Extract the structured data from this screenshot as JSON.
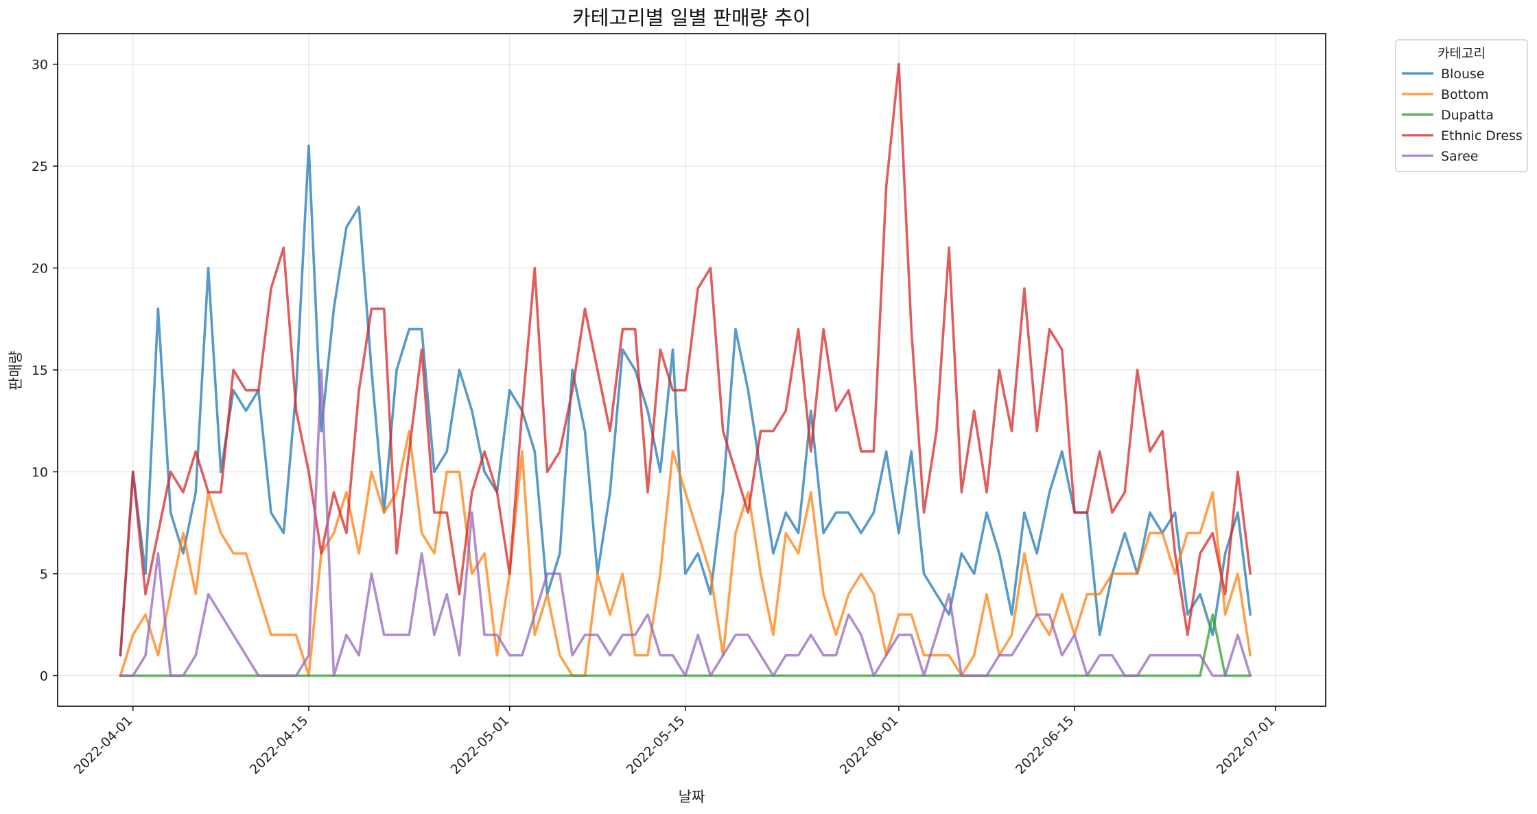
{
  "chart_data": {
    "type": "line",
    "title": "카테고리별 일별 판매량 추이",
    "xlabel": "날짜",
    "ylabel": "판매량",
    "ylim": [
      -1.5,
      31.5
    ],
    "xlim": [
      "2022-03-26",
      "2022-07-05"
    ],
    "grid": true,
    "legend": {
      "title": "카테고리",
      "placement": "outside top-right"
    },
    "x_ticks": [
      "2022-04-01",
      "2022-04-15",
      "2022-05-01",
      "2022-05-15",
      "2022-06-01",
      "2022-06-15",
      "2022-07-01"
    ],
    "y_ticks": [
      0,
      5,
      10,
      15,
      20,
      25,
      30
    ],
    "x_start": "2022-03-31",
    "series": [
      {
        "name": "Blouse",
        "color": "#1f77b4",
        "values": [
          1,
          10,
          5,
          18,
          8,
          6,
          9,
          20,
          10,
          14,
          13,
          14,
          8,
          7,
          14,
          26,
          12,
          18,
          22,
          23,
          15,
          8,
          15,
          17,
          17,
          10,
          11,
          15,
          13,
          10,
          9,
          14,
          13,
          11,
          4,
          6,
          15,
          12,
          5,
          9,
          16,
          15,
          13,
          10,
          16,
          5,
          6,
          4,
          9,
          17,
          14,
          10,
          6,
          8,
          7,
          13,
          7,
          8,
          8,
          7,
          8,
          11,
          7,
          11,
          5,
          4,
          3,
          6,
          5,
          8,
          6,
          3,
          8,
          6,
          9,
          11,
          8,
          8,
          2,
          5,
          7,
          5,
          8,
          7,
          8,
          3,
          4,
          2,
          6,
          8,
          3
        ]
      },
      {
        "name": "Bottom",
        "color": "#ff7f0e",
        "values": [
          0,
          2,
          3,
          1,
          4,
          7,
          4,
          9,
          7,
          6,
          6,
          4,
          2,
          2,
          2,
          0,
          6,
          7,
          9,
          6,
          10,
          8,
          9,
          12,
          7,
          6,
          10,
          10,
          5,
          6,
          1,
          5,
          11,
          2,
          4,
          1,
          0,
          0,
          5,
          3,
          5,
          1,
          1,
          5,
          11,
          9,
          7,
          5,
          1,
          7,
          9,
          5,
          2,
          7,
          6,
          9,
          4,
          2,
          4,
          5,
          4,
          1,
          3,
          3,
          1,
          1,
          1,
          0,
          1,
          4,
          1,
          2,
          6,
          3,
          2,
          4,
          2,
          4,
          4,
          5,
          5,
          5,
          7,
          7,
          5,
          7,
          7,
          9,
          3,
          5,
          1
        ]
      },
      {
        "name": "Dupatta",
        "color": "#2ca02c",
        "values": [
          0,
          0,
          0,
          0,
          0,
          0,
          0,
          0,
          0,
          0,
          0,
          0,
          0,
          0,
          0,
          0,
          0,
          0,
          0,
          0,
          0,
          0,
          0,
          0,
          0,
          0,
          0,
          0,
          0,
          0,
          0,
          0,
          0,
          0,
          0,
          0,
          0,
          0,
          0,
          0,
          0,
          0,
          0,
          0,
          0,
          0,
          0,
          0,
          0,
          0,
          0,
          0,
          0,
          0,
          0,
          0,
          0,
          0,
          0,
          0,
          0,
          0,
          0,
          0,
          0,
          0,
          0,
          0,
          0,
          0,
          0,
          0,
          0,
          0,
          0,
          0,
          0,
          0,
          0,
          0,
          0,
          0,
          0,
          0,
          0,
          0,
          0,
          3,
          0,
          0,
          0
        ]
      },
      {
        "name": "Ethnic Dress",
        "color": "#d62728",
        "values": [
          1,
          10,
          4,
          7,
          10,
          9,
          11,
          9,
          9,
          15,
          14,
          14,
          19,
          21,
          13,
          10,
          6,
          9,
          7,
          14,
          18,
          18,
          6,
          11,
          16,
          8,
          8,
          4,
          9,
          11,
          9,
          5,
          13,
          20,
          10,
          11,
          14,
          18,
          15,
          12,
          17,
          17,
          9,
          16,
          14,
          14,
          19,
          20,
          12,
          10,
          8,
          12,
          12,
          13,
          17,
          11,
          17,
          13,
          14,
          11,
          11,
          24,
          30,
          17,
          8,
          12,
          21,
          9,
          13,
          9,
          15,
          12,
          19,
          12,
          17,
          16,
          8,
          8,
          11,
          8,
          9,
          15,
          11,
          12,
          6,
          2,
          6,
          7,
          4,
          10,
          5
        ]
      },
      {
        "name": "Saree",
        "color": "#9467bd",
        "values": [
          0,
          0,
          1,
          6,
          0,
          0,
          1,
          4,
          3,
          2,
          1,
          0,
          0,
          0,
          0,
          1,
          15,
          0,
          2,
          1,
          5,
          2,
          2,
          2,
          6,
          2,
          4,
          1,
          8,
          2,
          2,
          1,
          1,
          3,
          5,
          5,
          1,
          2,
          2,
          1,
          2,
          2,
          3,
          1,
          1,
          0,
          2,
          0,
          1,
          2,
          2,
          1,
          0,
          1,
          1,
          2,
          1,
          1,
          3,
          2,
          0,
          1,
          2,
          2,
          0,
          2,
          4,
          0,
          0,
          0,
          1,
          1,
          2,
          3,
          3,
          1,
          2,
          0,
          1,
          1,
          0,
          0,
          1,
          1,
          1,
          1,
          1,
          0,
          0,
          2,
          0
        ]
      }
    ]
  }
}
